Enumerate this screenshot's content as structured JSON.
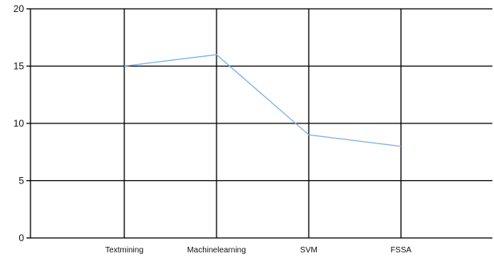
{
  "chart_data": {
    "type": "line",
    "title": "",
    "xlabel": "",
    "ylabel": "",
    "categories": [
      "Textmining",
      "Machinelearning",
      "SVM",
      "FSSA"
    ],
    "series": [
      {
        "values": [
          15,
          16,
          9,
          8
        ],
        "color": "#7fb2e5"
      }
    ],
    "ylim": [
      0,
      20
    ],
    "yticks": [
      0,
      5,
      10,
      15,
      20
    ],
    "grid": true,
    "legend": "none"
  }
}
